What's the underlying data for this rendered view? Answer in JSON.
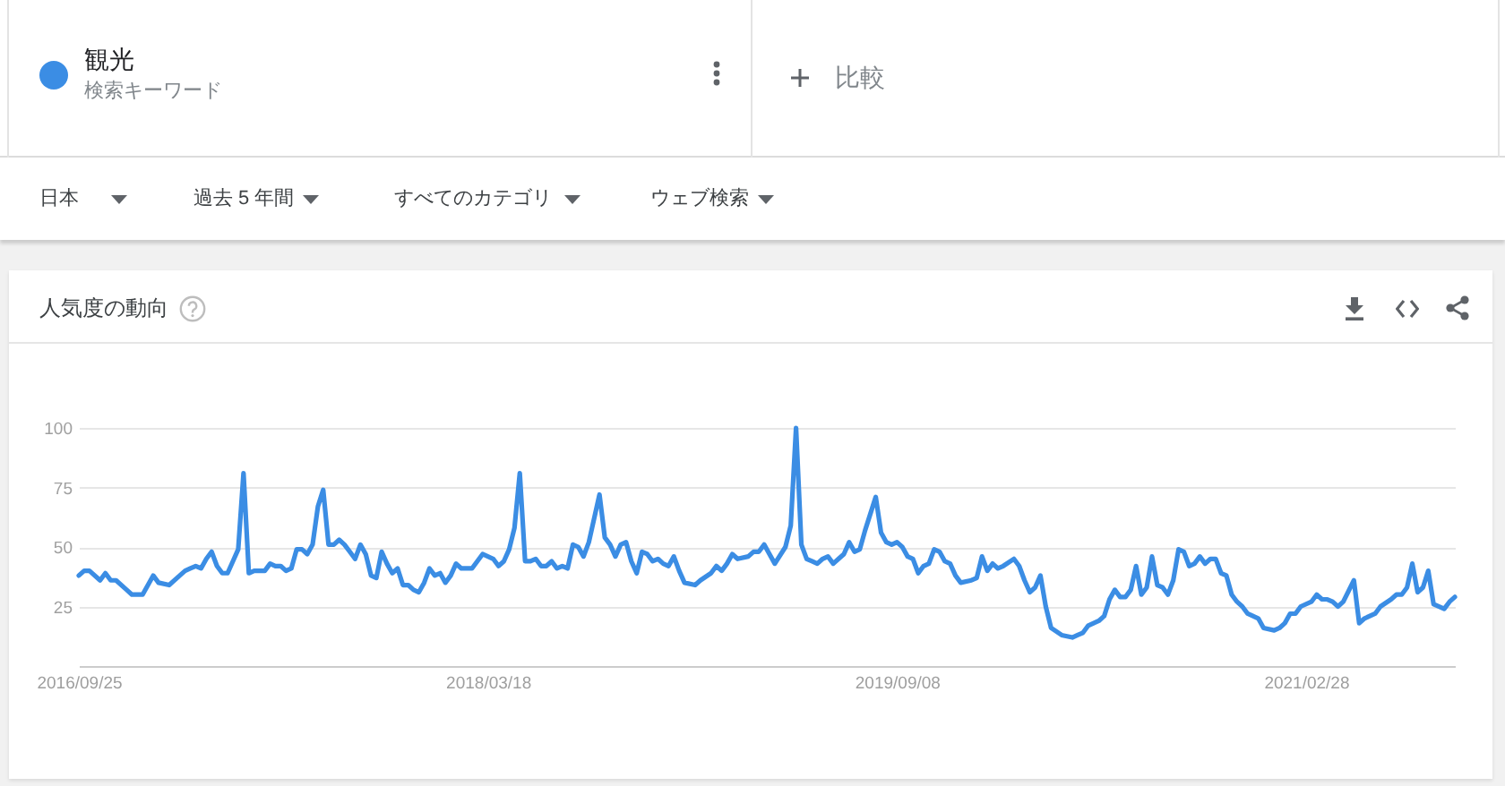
{
  "chart_data": {
    "type": "line",
    "title": "人気度の動向",
    "annotations": [
      "検索キーワード",
      "比較",
      "日本",
      "過去 5 年間",
      "すべてのカテゴリ",
      "ウェブ検索"
    ],
    "x": [
      "2016-09-25",
      "2016-10-02",
      "2016-10-09",
      "2016-10-23",
      "2016-10-30",
      "2016-11-06",
      "2016-11-13",
      "2016-11-27",
      "2016-12-04",
      "2016-12-18",
      "2017-01-01",
      "2017-01-08",
      "2017-01-22",
      "2017-02-05",
      "2017-02-12",
      "2017-02-19",
      "2017-02-26",
      "2017-03-05",
      "2017-03-12",
      "2017-03-19",
      "2017-03-26",
      "2017-04-02",
      "2017-04-09",
      "2017-04-16",
      "2017-04-23",
      "2017-04-30",
      "2017-05-07",
      "2017-05-14",
      "2017-05-28",
      "2017-06-04",
      "2017-06-11",
      "2017-06-18",
      "2017-06-25",
      "2017-07-02",
      "2017-07-09",
      "2017-07-16",
      "2017-07-23",
      "2017-07-30",
      "2017-08-06",
      "2017-08-13",
      "2017-08-20",
      "2017-08-27",
      "2017-09-03",
      "2017-09-10",
      "2017-09-17",
      "2017-09-24",
      "2017-10-01",
      "2017-10-08",
      "2017-10-15",
      "2017-10-22",
      "2017-10-29",
      "2017-11-05",
      "2017-11-12",
      "2017-11-19",
      "2017-11-26",
      "2017-12-03",
      "2017-12-10",
      "2017-12-17",
      "2017-12-24",
      "2017-12-31",
      "2018-01-07",
      "2018-01-14",
      "2018-01-21",
      "2018-01-28",
      "2018-02-04",
      "2018-02-11",
      "2018-02-25",
      "2018-03-04",
      "2018-03-11",
      "2018-03-18",
      "2018-03-25",
      "2018-04-01",
      "2018-04-08",
      "2018-04-15",
      "2018-04-22",
      "2018-04-29",
      "2018-05-06",
      "2018-05-13",
      "2018-05-20",
      "2018-05-27",
      "2018-06-03",
      "2018-06-10",
      "2018-06-17",
      "2018-06-24",
      "2018-07-01",
      "2018-07-08",
      "2018-07-15",
      "2018-07-22",
      "2018-07-29",
      "2018-08-12",
      "2018-08-19",
      "2018-08-26",
      "2018-09-02",
      "2018-09-09",
      "2018-09-16",
      "2018-09-23",
      "2018-09-30",
      "2018-10-07",
      "2018-10-14",
      "2018-10-21",
      "2018-10-28",
      "2018-11-04",
      "2018-11-11",
      "2018-11-18",
      "2018-11-25",
      "2018-12-02",
      "2018-12-16",
      "2018-12-23",
      "2019-01-06",
      "2019-01-13",
      "2019-01-20",
      "2019-01-27",
      "2019-02-03",
      "2019-02-10",
      "2019-02-24",
      "2019-03-03",
      "2019-03-10",
      "2019-03-17",
      "2019-03-24",
      "2019-03-31",
      "2019-04-14",
      "2019-04-21",
      "2019-04-28",
      "2019-05-05",
      "2019-05-12",
      "2019-05-19",
      "2019-05-26",
      "2019-06-02",
      "2019-06-09",
      "2019-06-16",
      "2019-06-23",
      "2019-06-30",
      "2019-07-07",
      "2019-07-14",
      "2019-07-21",
      "2019-07-28",
      "2019-08-11",
      "2019-08-18",
      "2019-08-25",
      "2019-09-01",
      "2019-09-08",
      "2019-09-15",
      "2019-09-22",
      "2019-09-29",
      "2019-10-06",
      "2019-10-13",
      "2019-10-20",
      "2019-10-27",
      "2019-11-03",
      "2019-11-10",
      "2019-11-17",
      "2019-11-24",
      "2019-12-01",
      "2019-12-15",
      "2019-12-22",
      "2019-12-29",
      "2020-01-05",
      "2020-01-12",
      "2020-01-19",
      "2020-01-26",
      "2020-02-09",
      "2020-02-16",
      "2020-02-23",
      "2020-03-01",
      "2020-03-08",
      "2020-03-15",
      "2020-03-22",
      "2020-03-29",
      "2020-04-12",
      "2020-04-26",
      "2020-05-03",
      "2020-05-10",
      "2020-05-17",
      "2020-05-31",
      "2020-06-07",
      "2020-06-14",
      "2020-06-21",
      "2020-06-28",
      "2020-07-05",
      "2020-07-12",
      "2020-07-19",
      "2020-07-26",
      "2020-08-02",
      "2020-08-09",
      "2020-08-16",
      "2020-08-23",
      "2020-08-30",
      "2020-09-06",
      "2020-09-13",
      "2020-09-20",
      "2020-09-27",
      "2020-10-04",
      "2020-10-11",
      "2020-10-18",
      "2020-10-25",
      "2020-11-01",
      "2020-11-08",
      "2020-11-15",
      "2020-11-22",
      "2020-11-29",
      "2020-12-06",
      "2020-12-13",
      "2020-12-27",
      "2021-01-03",
      "2021-01-17",
      "2021-01-24",
      "2021-01-31",
      "2021-02-07",
      "2021-02-14",
      "2021-02-21",
      "2021-03-07",
      "2021-03-14",
      "2021-03-21",
      "2021-03-28",
      "2021-04-04",
      "2021-04-11",
      "2021-04-18",
      "2021-05-02",
      "2021-05-09",
      "2021-05-16",
      "2021-05-30",
      "2021-06-06",
      "2021-06-20",
      "2021-06-27",
      "2021-07-04",
      "2021-07-11",
      "2021-07-18",
      "2021-07-25",
      "2021-08-01",
      "2021-08-08",
      "2021-08-15",
      "2021-08-29",
      "2021-09-05",
      "2021-09-12"
    ],
    "series": [
      {
        "name": "観光",
        "color": "#3b8de4",
        "values": [
          38,
          40,
          40,
          36,
          39,
          36,
          36,
          32,
          30,
          30,
          38,
          35,
          34,
          38,
          40,
          41,
          42,
          41,
          45,
          48,
          42,
          39,
          39,
          44,
          49,
          81,
          39,
          40,
          40,
          43,
          42,
          42,
          40,
          41,
          49,
          49,
          47,
          51,
          67,
          74,
          51,
          51,
          53,
          51,
          48,
          45,
          51,
          47,
          38,
          37,
          48,
          43,
          39,
          41,
          34,
          34,
          32,
          31,
          35,
          41,
          38,
          39,
          35,
          38,
          43,
          41,
          41,
          44,
          47,
          46,
          45,
          42,
          44,
          49,
          58,
          81,
          44,
          44,
          45,
          42,
          42,
          44,
          41,
          42,
          41,
          51,
          50,
          46,
          52,
          72,
          54,
          51,
          46,
          51,
          52,
          44,
          39,
          48,
          47,
          44,
          45,
          43,
          42,
          46,
          40,
          35,
          34,
          36,
          39,
          42,
          40,
          43,
          47,
          45,
          46,
          48,
          48,
          51,
          47,
          43,
          50,
          59,
          100,
          51,
          45,
          44,
          43,
          45,
          46,
          43,
          45,
          47,
          52,
          48,
          49,
          57,
          71,
          56,
          52,
          51,
          52,
          50,
          46,
          45,
          39,
          42,
          43,
          49,
          48,
          44,
          43,
          38,
          35,
          36,
          37,
          46,
          40,
          43,
          41,
          42,
          45,
          42,
          36,
          31,
          33,
          38,
          25,
          16,
          13,
          12,
          13,
          14,
          17,
          19,
          21,
          28,
          32,
          29,
          29,
          32,
          42,
          30,
          33,
          46,
          34,
          33,
          30,
          36,
          49,
          48,
          42,
          43,
          46,
          43,
          45,
          45,
          39,
          38,
          30,
          27,
          25,
          22,
          20,
          16,
          15,
          16,
          18,
          22,
          22,
          25,
          27,
          30,
          28,
          28,
          27,
          25,
          27,
          36,
          18,
          20,
          22,
          25,
          28,
          30,
          30,
          33,
          43,
          31,
          33,
          40,
          26,
          24,
          27,
          29
        ]
      }
    ],
    "xlim": [
      "2016-09-25",
      "2021-09-12"
    ],
    "xticks": [
      {
        "value": "2016-09-25",
        "label": "2016/09/25"
      },
      {
        "value": "2018-03-18",
        "label": "2018/03/18"
      },
      {
        "value": "2019-09-08",
        "label": "2019/09/08"
      },
      {
        "value": "2021-02-28",
        "label": "2021/02/28"
      }
    ],
    "ylim": [
      0,
      100
    ],
    "yticks": [
      25,
      50,
      75,
      100
    ],
    "grid": "y",
    "legend": "top left"
  }
}
